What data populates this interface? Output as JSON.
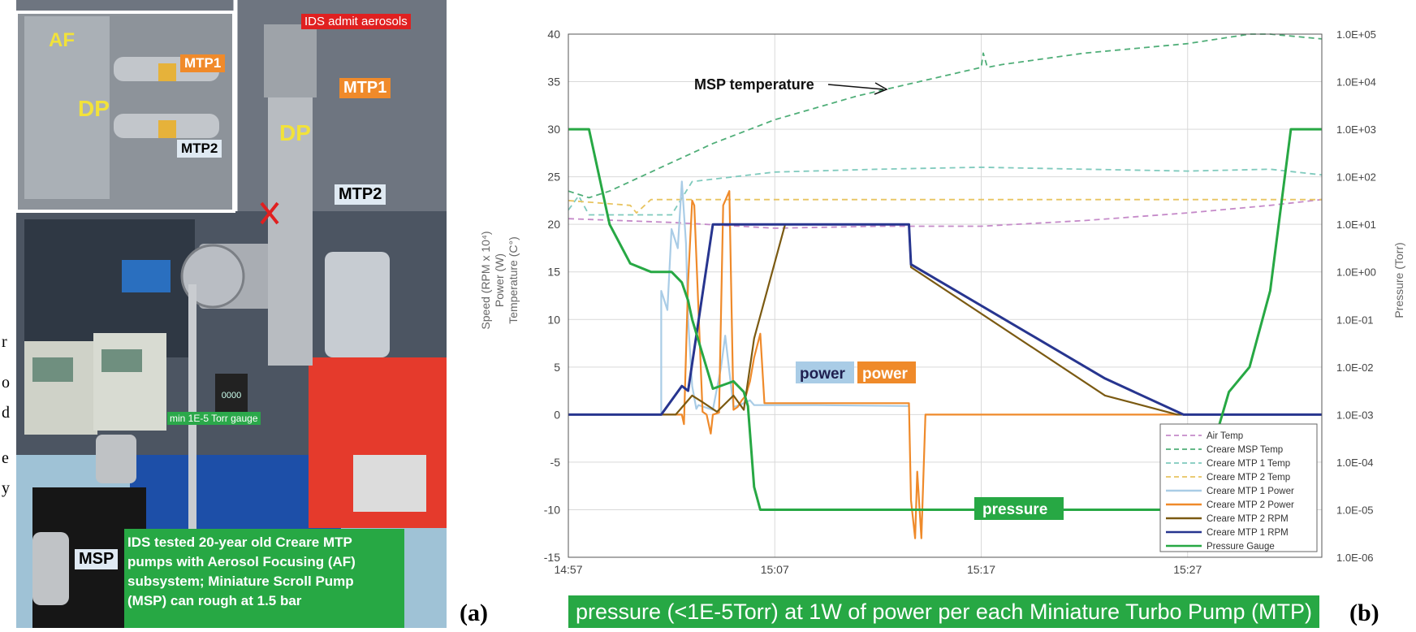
{
  "photo": {
    "labels": {
      "idsAdmit": "IDS admit aerosols",
      "af": "AF",
      "mtp1": "MTP1",
      "mtp2": "MTP2",
      "dp": "DP",
      "gauge": "min 1E-5 Torr gauge",
      "msp": "MSP",
      "gaugeReadout": "0000"
    },
    "caption": [
      "IDS  tested 20-year old Creare MTP",
      "pumps with Aerosol Focusing (AF)",
      "subsystem; Miniature Scroll Pump",
      "(MSP) can rough at 1.5 bar"
    ],
    "panelLetter": "(a)",
    "leftEdgeFragments": [
      "r",
      "o",
      "d",
      "e",
      "y"
    ]
  },
  "colors": {
    "green": "#27a844",
    "navy": "#27358f",
    "orange": "#ef8a2a",
    "brown": "#7b5a12",
    "lightblue": "#a9cce6",
    "pink": "#c58ac9",
    "teal": "#7fcabd",
    "yellow": "#e8c460",
    "msp": "#4fae78"
  },
  "chart_data": {
    "type": "line",
    "title": "",
    "xlabel": "",
    "ylabel": "Speed (RPM x 10⁴)\nPower (W)\nTemperature (C°)",
    "ylabelLines": [
      "Speed (RPM x 10⁴)",
      "Power (W)",
      "Temperature (C°)"
    ],
    "y2label": "Pressure (Torr)",
    "xlim": [
      "14:57",
      "15:33"
    ],
    "ylim": [
      -15,
      40
    ],
    "y2scale": "log",
    "y2lim": [
      1e-06,
      100000.0
    ],
    "xticks": [
      "14:57",
      "15:07",
      "15:17",
      "15:27"
    ],
    "yticks": [
      "40",
      "35",
      "30",
      "25",
      "20",
      "15",
      "10",
      "5",
      "0",
      "-5",
      "-10",
      "-15"
    ],
    "y2ticks": [
      "1.0E+05",
      "1.0E+04",
      "1.0E+03",
      "1.0E+02",
      "1.0E+01",
      "1.0E+00",
      "1.0E-01",
      "1.0E-02",
      "1.0E-03",
      "1.0E-04",
      "1.0E-05",
      "1.0E-06"
    ],
    "grid": true,
    "legend": "bottom-right",
    "annotations": {
      "mspTemperature": "MSP temperature",
      "powerBlue": "power",
      "powerOrange": "power",
      "pressure": "pressure"
    },
    "series": [
      {
        "name": "Air Temp",
        "axis": "left",
        "style": "dashed",
        "colorKey": "pink",
        "x": [
          0,
          5,
          10,
          15,
          20,
          25,
          30,
          34,
          36.5
        ],
        "y": [
          20.6,
          20.2,
          19.6,
          19.8,
          19.8,
          20.4,
          21.2,
          22.0,
          22.6
        ]
      },
      {
        "name": "Creare MSP Temp",
        "axis": "left",
        "style": "dashed",
        "colorKey": "msp",
        "x": [
          0,
          1,
          2,
          3,
          5,
          7,
          10,
          14,
          17,
          19,
          20,
          20.1,
          20.3,
          21,
          25,
          30,
          33,
          34,
          36.5
        ],
        "y": [
          23.5,
          22.8,
          23.5,
          24.5,
          26.5,
          28.5,
          31.0,
          33.5,
          35.0,
          36.0,
          36.5,
          38.0,
          36.5,
          36.8,
          38.0,
          39.0,
          40.0,
          40.0,
          39.5
        ]
      },
      {
        "name": "Creare MTP 1 Temp",
        "axis": "left",
        "style": "dashed",
        "colorKey": "teal",
        "x": [
          0,
          0.5,
          1,
          3,
          5,
          6,
          10,
          15,
          20,
          25,
          30,
          34,
          36.5
        ],
        "y": [
          21.5,
          23.0,
          21.0,
          21.0,
          21.0,
          24.5,
          25.5,
          25.8,
          26.0,
          25.8,
          25.6,
          25.8,
          25.2
        ]
      },
      {
        "name": "Creare MTP 2 Temp",
        "axis": "left",
        "style": "dashed",
        "colorKey": "yellow",
        "x": [
          0,
          3,
          3.3,
          4,
          10,
          20,
          30,
          36.5
        ],
        "y": [
          22.5,
          22.0,
          21.2,
          22.6,
          22.6,
          22.6,
          22.6,
          22.6
        ]
      },
      {
        "name": "Creare MTP 1 Power",
        "axis": "left",
        "style": "solid",
        "colorKey": "lightblue",
        "x": [
          0,
          4.5,
          4.5,
          4.8,
          5.0,
          5.3,
          5.5,
          5.7,
          5.8,
          6.0,
          6.2,
          6.3,
          7.0,
          7.4,
          7.6,
          8.0,
          8.3,
          8.8,
          9.0,
          9.5,
          12,
          16.5
        ],
        "y": [
          0,
          0,
          13.0,
          11.0,
          19.5,
          17.5,
          24.5,
          18.0,
          10.0,
          3.0,
          0.6,
          1.0,
          0.5,
          5.0,
          8.3,
          0.8,
          1.0,
          1.5,
          1.0,
          1.0,
          1.0,
          0.9
        ]
      },
      {
        "name": "Creare MTP 2 Power",
        "axis": "left",
        "style": "solid",
        "colorKey": "orange",
        "x": [
          0,
          5.5,
          5.6,
          5.8,
          6.0,
          6.1,
          6.5,
          6.7,
          6.9,
          7.0,
          7.3,
          7.5,
          7.8,
          8.0,
          8.2,
          8.4,
          8.6,
          8.8,
          9.0,
          9.3,
          9.5,
          12,
          16.5,
          16.6,
          16.8,
          16.9,
          17.1,
          17.3,
          36.5
        ],
        "y": [
          0,
          0,
          -1,
          14.0,
          22.5,
          22.0,
          0.3,
          0,
          -2,
          0,
          0.2,
          22.0,
          23.5,
          0.5,
          0.8,
          1.5,
          2.0,
          3.5,
          6.0,
          8.5,
          1.2,
          1.2,
          1.2,
          -9,
          -13,
          -6,
          -13,
          0,
          0
        ]
      },
      {
        "name": "Creare MTP 2 RPM",
        "axis": "left",
        "style": "solid",
        "colorKey": "brown",
        "x": [
          0,
          5.2,
          6.0,
          6.5,
          7.2,
          8.0,
          8.5,
          9.0,
          10.5,
          10.7,
          16.5,
          16.6,
          26.0,
          29.5,
          36.5
        ],
        "y": [
          0,
          0,
          2.0,
          1.3,
          0.3,
          2.0,
          0.5,
          8.0,
          20.0,
          20.0,
          20.0,
          15.5,
          2.0,
          0,
          0
        ]
      },
      {
        "name": "Creare MTP 1 RPM",
        "axis": "left",
        "style": "solid",
        "colorKey": "navy",
        "x": [
          0,
          4.5,
          5.5,
          5.8,
          7.0,
          10.7,
          16.5,
          16.6,
          26.0,
          29.8,
          36.5
        ],
        "y": [
          0,
          0,
          3.0,
          2.5,
          20.0,
          20.0,
          20.0,
          15.8,
          3.8,
          0,
          0
        ]
      },
      {
        "name": "Pressure Gauge",
        "axis": "right",
        "style": "solid",
        "colorKey": "green",
        "x": [
          0,
          1,
          1.5,
          2,
          3,
          4,
          5,
          5.5,
          5.8,
          6,
          7,
          8,
          8.5,
          8.7,
          9,
          9.3,
          9.5,
          12,
          14,
          18,
          22,
          26,
          29,
          31,
          32,
          33,
          34,
          35,
          36.5
        ],
        "y": [
          1000.0,
          1000.0,
          100.0,
          10.0,
          1.5,
          1.0,
          1.0,
          0.6,
          0.25,
          0.1,
          0.0035,
          0.005,
          0.003,
          0.0015,
          3e-05,
          1e-05,
          1e-05,
          1e-05,
          1e-05,
          1e-05,
          1e-05,
          1e-05,
          1e-05,
          0.0001,
          0.003,
          0.01,
          0.4,
          1000.0,
          1000.0
        ]
      }
    ]
  },
  "chartPanel": {
    "panelLetter": "(b)",
    "caption": "pressure (<1E-5Torr) at 1W of power per each Miniature Turbo Pump (MTP)"
  }
}
